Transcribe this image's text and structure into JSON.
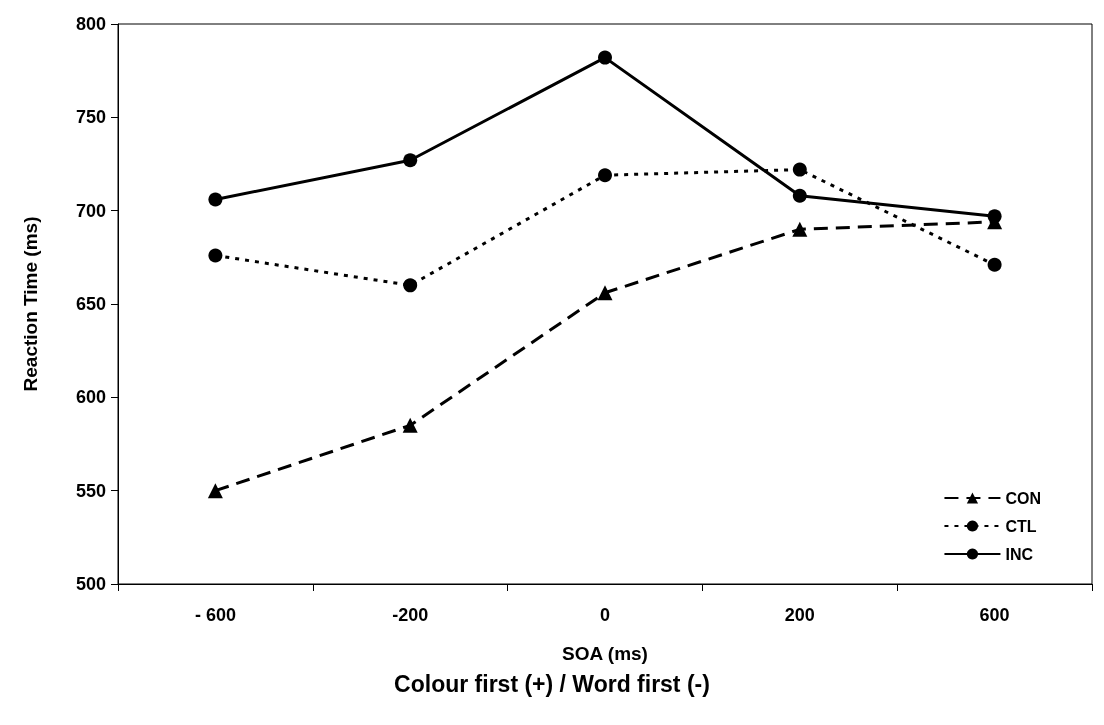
{
  "chart_data": {
    "type": "line",
    "xlabel": "SOA (ms)",
    "ylabel": "Reaction Time (ms)",
    "annotations": [
      "Colour first (+) / Word first (-)"
    ],
    "categories": [
      "- 600",
      "-200",
      "0",
      "200",
      "600"
    ],
    "series": [
      {
        "name": "CON",
        "color": "#000000",
        "marker": "triangle",
        "line_style": "dashed",
        "values": [
          550,
          585,
          656,
          690,
          694
        ]
      },
      {
        "name": "CTL",
        "color": "#000000",
        "marker": "circle",
        "line_style": "dotted",
        "values": [
          676,
          660,
          719,
          722,
          671
        ]
      },
      {
        "name": "INC",
        "color": "#000000",
        "marker": "circle",
        "line_style": "solid",
        "values": [
          706,
          727,
          782,
          708,
          697
        ]
      }
    ],
    "ylim": [
      500,
      800
    ],
    "yticks": [
      500,
      550,
      600,
      650,
      700,
      750,
      800
    ],
    "grid": false,
    "legend": "bottom right"
  }
}
